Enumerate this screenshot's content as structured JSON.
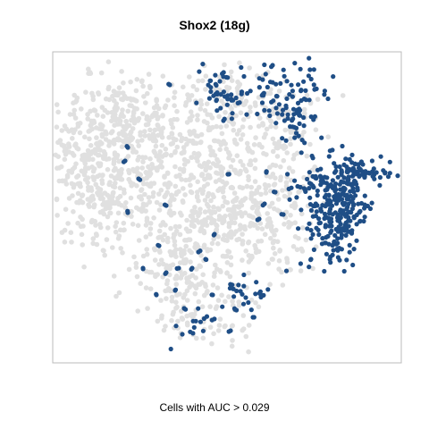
{
  "chart_data": {
    "type": "scatter",
    "title": "Shox2 (18g)",
    "xlabel": "Cells with AUC > 0.029",
    "ylabel": "",
    "grid": false,
    "legend": "none",
    "colors": {
      "background_cells": "#e0e0e0",
      "auc_cells": "#1f4e86",
      "frame": "#bbbbbb"
    },
    "series": [
      {
        "name": "",
        "color": "#e0e0e0",
        "clusters": [
          {
            "center": [
              90,
              180
            ],
            "spread": [
              22,
              28
            ],
            "count": 130
          },
          {
            "center": [
              135,
              135
            ],
            "spread": [
              35,
              25
            ],
            "count": 180
          },
          {
            "center": [
              180,
              170
            ],
            "spread": [
              35,
              35
            ],
            "count": 220
          },
          {
            "center": [
              120,
              220
            ],
            "spread": [
              30,
              35
            ],
            "count": 180
          },
          {
            "center": [
              240,
              200
            ],
            "spread": [
              22,
              45
            ],
            "count": 170
          },
          {
            "center": [
              275,
              240
            ],
            "spread": [
              30,
              30
            ],
            "count": 140
          },
          {
            "center": [
              205,
              270
            ],
            "spread": [
              30,
              25
            ],
            "count": 130
          },
          {
            "center": [
              220,
              330
            ],
            "spread": [
              35,
              35
            ],
            "count": 160
          },
          {
            "center": [
              265,
              115
            ],
            "spread": [
              40,
              20
            ],
            "count": 120
          },
          {
            "center": [
              310,
              160
            ],
            "spread": [
              20,
              25
            ],
            "count": 80
          },
          {
            "center": [
              310,
              240
            ],
            "spread": [
              20,
              30
            ],
            "count": 80
          }
        ]
      },
      {
        "name": "",
        "color": "#1f4e86",
        "clusters": [
          {
            "center": [
              378,
              240
            ],
            "spread": [
              17,
              30
            ],
            "count": 230
          },
          {
            "center": [
              405,
              195
            ],
            "spread": [
              18,
              8
            ],
            "count": 70
          },
          {
            "center": [
              355,
              208
            ],
            "spread": [
              22,
              7
            ],
            "count": 40
          },
          {
            "center": [
              245,
              105
            ],
            "spread": [
              12,
              14
            ],
            "count": 40
          },
          {
            "center": [
              320,
              105
            ],
            "spread": [
              25,
              18
            ],
            "count": 80
          },
          {
            "center": [
              332,
              140
            ],
            "spread": [
              10,
              15
            ],
            "count": 25
          },
          {
            "center": [
              270,
              330
            ],
            "spread": [
              12,
              10
            ],
            "count": 25
          },
          {
            "center": [
              215,
              362
            ],
            "spread": [
              12,
              8
            ],
            "count": 15
          }
        ],
        "scattered": [
          [
            190,
            95
          ],
          [
            305,
            73
          ],
          [
            143,
            165
          ],
          [
            155,
            200
          ],
          [
            143,
            238
          ],
          [
            186,
            230
          ],
          [
            160,
            300
          ],
          [
            178,
            275
          ],
          [
            186,
            305
          ],
          [
            196,
            325
          ],
          [
            206,
            345
          ],
          [
            175,
            330
          ],
          [
            240,
            262
          ],
          [
            230,
            290
          ],
          [
            215,
            300
          ],
          [
            298,
            193
          ],
          [
            308,
            215
          ],
          [
            296,
            228
          ],
          [
            290,
            245
          ],
          [
            317,
            240
          ],
          [
            250,
            135
          ],
          [
            255,
            195
          ],
          [
            238,
            330
          ],
          [
            258,
            370
          ],
          [
            283,
            355
          ],
          [
            292,
            330
          ],
          [
            348,
            290
          ],
          [
            140,
            180
          ],
          [
            200,
            300
          ],
          [
            222,
            282
          ]
        ]
      }
    ]
  }
}
